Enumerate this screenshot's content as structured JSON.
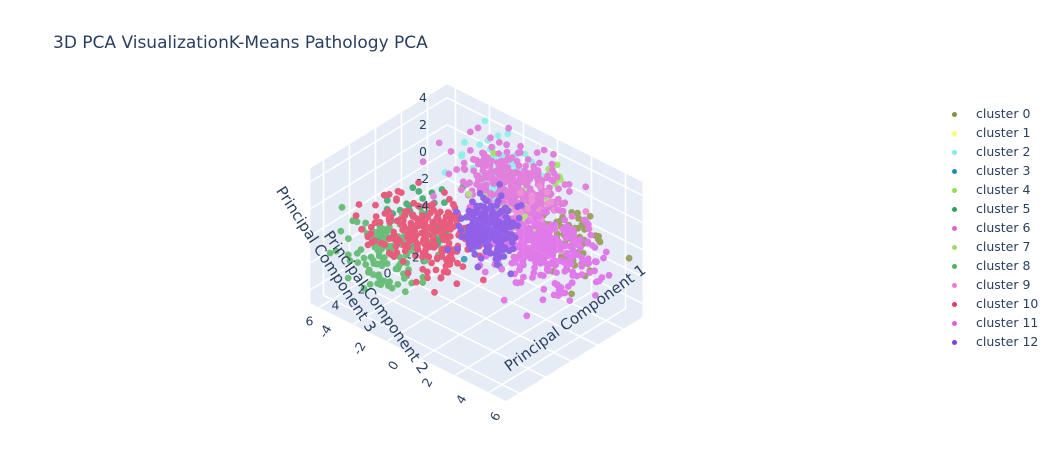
{
  "chart_data": {
    "type": "scatter",
    "title": "3D PCA VisualizationK-Means Pathology PCA",
    "axes": {
      "x": {
        "label": "Principal Component 1",
        "ticks": [
          "-4",
          "-2",
          "0",
          "2",
          "4",
          "6"
        ]
      },
      "y": {
        "label": "Principal Component 2",
        "ticks": [
          "-2",
          "0",
          "2",
          "4",
          "6"
        ]
      },
      "z": {
        "label": "Principal Component 3",
        "ticks": [
          "-4",
          "-2",
          "0",
          "2",
          "4"
        ]
      }
    },
    "grid": true,
    "legend_position": "right",
    "series": [
      {
        "name": "cluster 0",
        "color": "#8c8f3f",
        "center": [
          5.0,
          0.0,
          1.5
        ],
        "spread": [
          1.2,
          1.0,
          1.0
        ],
        "count": 70
      },
      {
        "name": "cluster 1",
        "color": "#fafa6e",
        "center": [
          1.0,
          -1.0,
          3.0
        ],
        "spread": [
          0.8,
          0.8,
          0.8
        ],
        "count": 6
      },
      {
        "name": "cluster 2",
        "color": "#7ef0e6",
        "center": [
          -1.0,
          -3.0,
          1.5
        ],
        "spread": [
          1.0,
          1.0,
          1.0
        ],
        "count": 60
      },
      {
        "name": "cluster 3",
        "color": "#1f8fb5",
        "center": [
          0.5,
          0.5,
          -1.0
        ],
        "spread": [
          0.8,
          0.8,
          0.8
        ],
        "count": 20
      },
      {
        "name": "cluster 4",
        "color": "#8fe34a",
        "center": [
          2.0,
          -1.0,
          2.5
        ],
        "spread": [
          1.0,
          1.0,
          0.8
        ],
        "count": 40
      },
      {
        "name": "cluster 5",
        "color": "#2aa35a",
        "center": [
          -2.5,
          1.0,
          -1.5
        ],
        "spread": [
          1.0,
          1.0,
          1.0
        ],
        "count": 40
      },
      {
        "name": "cluster 6",
        "color": "#e065d6",
        "center": [
          0.5,
          -2.0,
          1.5
        ],
        "spread": [
          1.4,
          1.1,
          1.0
        ],
        "count": 300
      },
      {
        "name": "cluster 7",
        "color": "#a6d96a",
        "center": [
          2.5,
          0.5,
          2.0
        ],
        "spread": [
          0.8,
          0.8,
          0.8
        ],
        "count": 20
      },
      {
        "name": "cluster 8",
        "color": "#4db35c",
        "center": [
          -3.0,
          3.0,
          -2.5
        ],
        "spread": [
          1.1,
          1.1,
          1.0
        ],
        "count": 130
      },
      {
        "name": "cluster 9",
        "color": "#f07ad0",
        "center": [
          3.0,
          -0.5,
          1.5
        ],
        "spread": [
          1.0,
          1.0,
          1.0
        ],
        "count": 40
      },
      {
        "name": "cluster 10",
        "color": "#e8395f",
        "center": [
          -1.5,
          2.0,
          -1.0
        ],
        "spread": [
          1.3,
          1.2,
          1.0
        ],
        "count": 220
      },
      {
        "name": "cluster 11",
        "color": "#e05ee8",
        "center": [
          4.0,
          0.5,
          0.5
        ],
        "spread": [
          1.4,
          1.0,
          1.1
        ],
        "count": 280
      },
      {
        "name": "cluster 12",
        "color": "#7b3fe4",
        "center": [
          1.0,
          0.5,
          0.0
        ],
        "spread": [
          0.7,
          0.7,
          0.8
        ],
        "count": 220
      }
    ]
  }
}
